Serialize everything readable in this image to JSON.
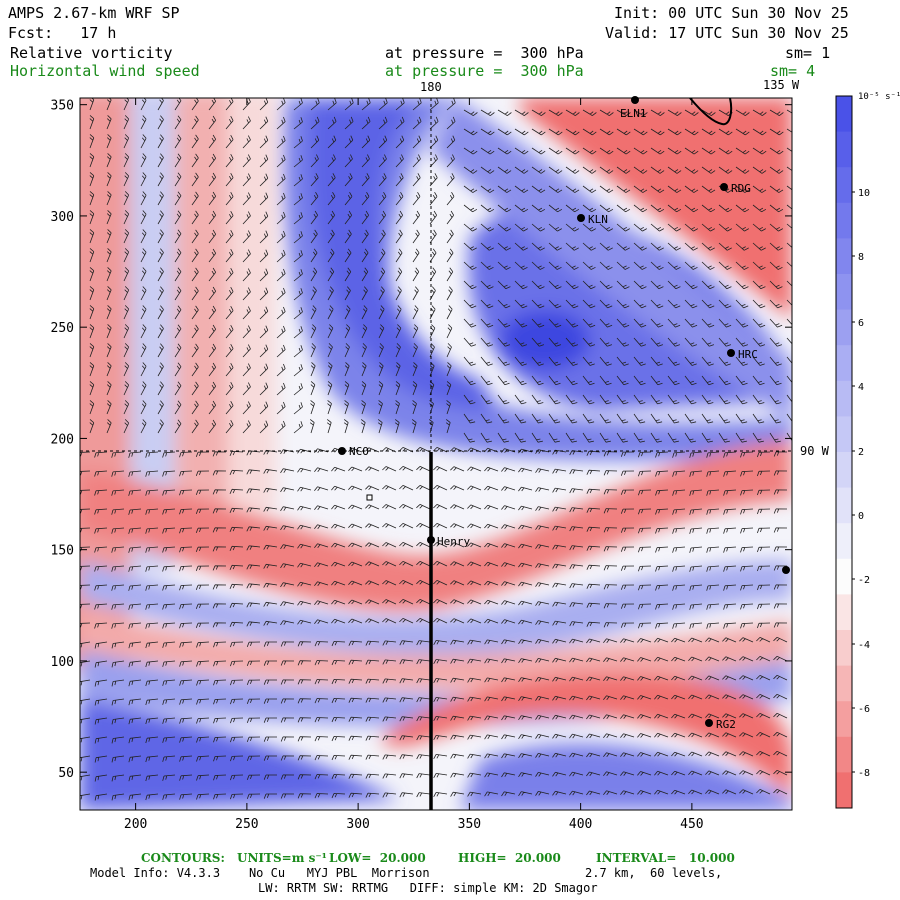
{
  "header": {
    "model": "AMPS 2.67-km WRF SP",
    "init": "Init: 00 UTC Sun 30 Nov 25",
    "fcst": "Fcst:   17 h",
    "valid": "Valid: 17 UTC Sun 30 Nov 25",
    "field1": "Relative vorticity",
    "field1_level": "at pressure =  300 hPa",
    "field1_sm": "sm= 1",
    "field2": "Horizontal wind speed",
    "field2_level": "at pressure =  300 hPa",
    "field2_sm": "sm= 4"
  },
  "map": {
    "meridian_labels": [
      "180",
      "135 W",
      "90 W"
    ],
    "stations": [
      {
        "name": "ELN1"
      },
      {
        "name": "RDG"
      },
      {
        "name": "KLN"
      },
      {
        "name": "HRC"
      },
      {
        "name": "NCO"
      },
      {
        "name": "Henry"
      },
      {
        "name": "RG2"
      },
      {
        "name": ""
      }
    ],
    "x_ticks": [
      "200",
      "250",
      "300",
      "350",
      "400",
      "450"
    ],
    "y_ticks": [
      "350",
      "300",
      "250",
      "200",
      "150",
      "100",
      "50"
    ]
  },
  "colorbar": {
    "units": "10⁻⁵ s⁻¹",
    "labels": [
      "10",
      "8",
      "6",
      "4",
      "2",
      "0",
      "-2",
      "-4",
      "-6",
      "-8"
    ],
    "pos_color": "#4a52e8",
    "neg_color": "#f07070"
  },
  "footer": {
    "contours_label": "CONTOURS:",
    "units_label": "UNITS=m s⁻¹",
    "low": "LOW=  20.000",
    "high": "HIGH=  20.000",
    "interval": "INTERVAL=   10.000",
    "model_info": "Model Info: V4.3.3    No Cu   MYJ PBL  Morrison",
    "grid_info": "2.7 km,  60 levels,",
    "physics": "LW: RRTM SW: RRTMG   DIFF: simple KM: 2D Smagor"
  }
}
